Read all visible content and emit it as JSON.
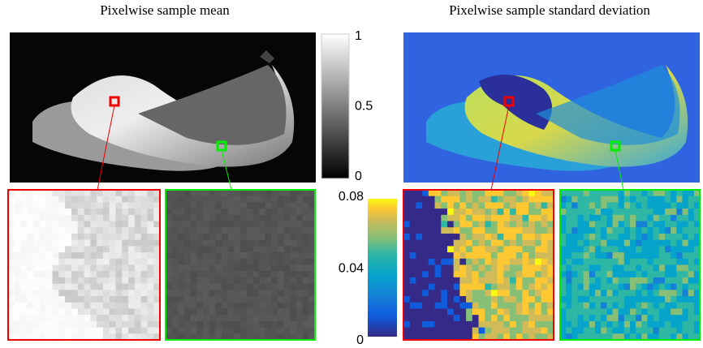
{
  "panels": [
    {
      "title": "Pixelwise sample mean"
    },
    {
      "title": "Pixelwise sample standard deviation"
    }
  ],
  "colorbars": [
    {
      "range": [
        0,
        1
      ],
      "ticks": [
        0,
        0.5,
        1
      ]
    },
    {
      "range": [
        0,
        0.08
      ],
      "ticks": [
        0,
        0.04,
        0.08
      ]
    }
  ]
}
